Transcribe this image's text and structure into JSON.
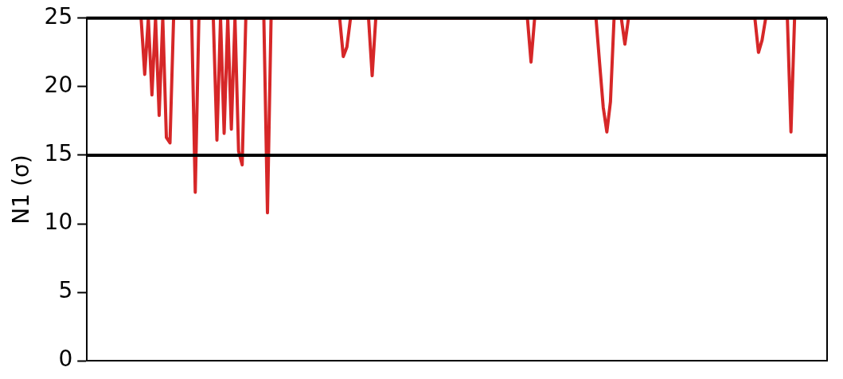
{
  "chart_data": {
    "type": "line",
    "ylabel": "N1 (σ)",
    "categories": [
      null,
      null,
      null,
      null,
      null,
      null,
      null,
      null,
      null,
      null,
      null,
      null,
      null,
      null,
      null,
      null,
      null,
      null,
      null,
      null,
      null,
      null,
      null,
      null,
      null,
      null,
      null,
      null,
      null,
      null,
      null,
      null,
      null,
      null,
      null,
      null,
      null,
      null,
      null,
      null,
      null,
      null,
      null,
      null,
      null,
      null,
      null,
      null,
      null,
      null,
      null,
      null,
      null,
      null,
      null,
      null,
      null,
      null,
      null,
      null,
      null,
      null,
      null,
      null,
      null,
      null,
      null,
      null,
      null,
      null,
      null,
      null,
      null,
      null,
      null,
      null,
      null,
      null,
      null,
      null,
      null,
      null,
      null,
      null,
      null,
      null,
      null,
      null,
      null,
      null,
      null,
      null,
      null,
      null,
      null,
      null,
      null,
      null,
      null,
      null,
      null,
      null,
      null,
      null,
      null,
      null,
      null,
      null,
      null,
      null,
      null,
      null,
      null,
      null,
      null,
      null,
      null,
      null,
      null,
      null,
      null,
      null,
      null,
      null,
      null,
      null,
      null,
      null,
      null,
      null,
      null,
      null,
      null,
      null,
      null,
      null,
      null,
      null,
      null,
      null,
      null,
      null,
      null,
      null,
      null,
      null,
      null,
      null,
      null,
      null,
      null,
      null,
      null,
      null,
      null,
      null,
      null,
      null,
      null,
      null,
      null,
      null,
      null,
      null,
      null,
      null,
      null,
      null,
      null,
      null,
      null,
      null,
      null,
      null,
      null,
      null,
      null,
      null,
      null,
      null,
      null,
      null,
      null,
      null,
      null,
      null,
      null,
      null,
      null,
      null,
      null,
      null,
      null,
      null,
      null,
      null,
      null,
      null,
      null,
      null,
      null,
      null,
      null,
      null,
      null,
      null
    ],
    "ylim": [
      0,
      25
    ],
    "yticks": [
      0,
      5,
      10,
      15,
      20,
      25
    ],
    "grid": false,
    "legend": false,
    "marker": "none",
    "line_style": "solid",
    "ref_lines": [
      {
        "axis": "y",
        "value": 15,
        "color": "#000000"
      }
    ],
    "series": [
      {
        "color": "#d62728",
        "values": [
          null,
          null,
          null,
          null,
          null,
          null,
          null,
          null,
          null,
          null,
          null,
          null,
          null,
          null,
          null,
          25,
          20.9,
          25,
          19.4,
          25,
          17.9,
          25,
          16.3,
          15.9,
          25,
          null,
          null,
          null,
          null,
          25,
          12.3,
          25,
          null,
          null,
          null,
          25,
          16.1,
          25,
          16.6,
          25,
          16.9,
          25,
          15.3,
          14.3,
          25,
          null,
          null,
          null,
          null,
          25,
          10.8,
          25,
          null,
          null,
          null,
          null,
          null,
          null,
          null,
          null,
          null,
          null,
          null,
          null,
          null,
          null,
          null,
          null,
          null,
          null,
          25,
          22.2,
          22.9,
          25,
          null,
          null,
          null,
          null,
          25,
          20.8,
          25,
          null,
          null,
          null,
          null,
          null,
          null,
          null,
          null,
          null,
          null,
          null,
          null,
          null,
          null,
          null,
          null,
          null,
          null,
          null,
          null,
          null,
          null,
          null,
          null,
          null,
          null,
          null,
          null,
          null,
          null,
          null,
          null,
          null,
          null,
          null,
          null,
          null,
          null,
          null,
          null,
          null,
          25,
          21.8,
          25,
          null,
          null,
          null,
          null,
          null,
          null,
          null,
          null,
          null,
          null,
          null,
          null,
          null,
          null,
          null,
          null,
          25,
          21.7,
          18.5,
          16.7,
          18.9,
          25,
          null,
          25,
          23.1,
          25,
          null,
          null,
          null,
          null,
          null,
          null,
          null,
          null,
          null,
          null,
          null,
          null,
          null,
          null,
          null,
          null,
          null,
          null,
          null,
          null,
          null,
          null,
          null,
          null,
          null,
          null,
          null,
          null,
          null,
          null,
          null,
          null,
          null,
          null,
          25,
          22.5,
          23.4,
          25,
          null,
          null,
          null,
          null,
          null,
          25,
          16.7,
          25,
          null,
          null,
          null,
          null,
          null,
          null,
          null,
          null,
          null
        ]
      }
    ]
  }
}
